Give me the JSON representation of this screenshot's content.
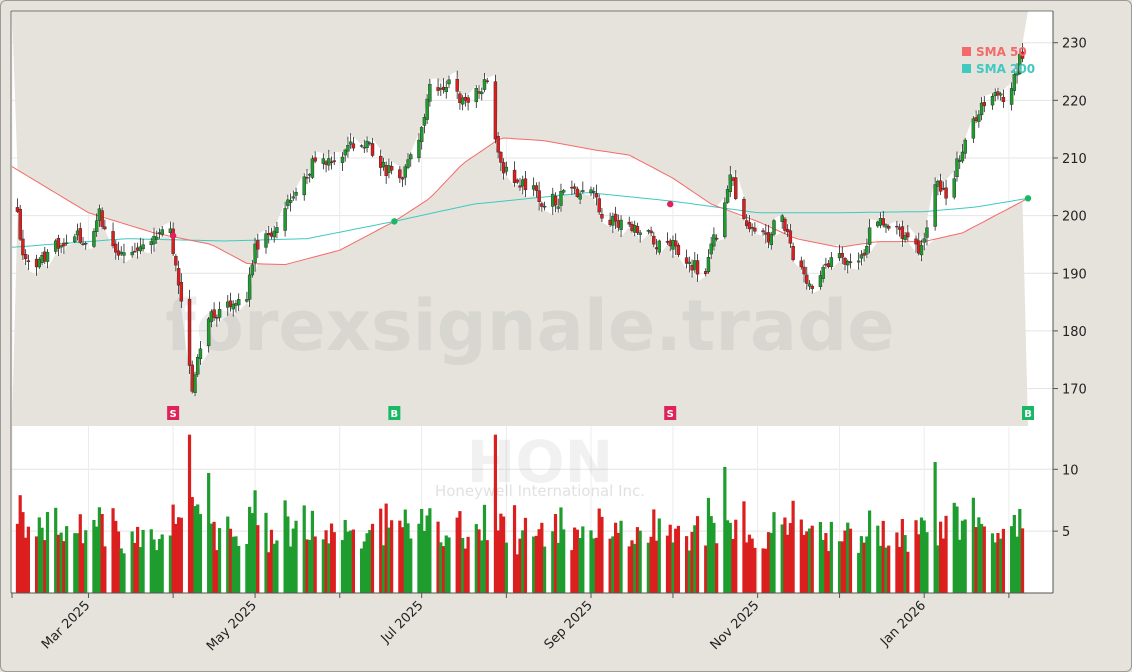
{
  "watermark": "forexsignale.trade",
  "ticker": "HON",
  "company": "Honeywell International Inc.",
  "legend": [
    {
      "label": "SMA 50",
      "color": "#f46a6a"
    },
    {
      "label": "SMA 200",
      "color": "#3fc9c0"
    }
  ],
  "colors": {
    "up": "#1e9d2e",
    "down": "#db1e1e",
    "sma50": "#f46a6a",
    "sma200": "#3fc9c0",
    "buy": "#19b865",
    "sell": "#e0225a"
  },
  "chart_data": {
    "type": "candlestick",
    "price_axis": {
      "ticks": [
        170,
        180,
        190,
        200,
        210,
        220,
        230
      ],
      "range": [
        163.5,
        235.5
      ]
    },
    "volume_axis": {
      "ticks": [
        5,
        10
      ],
      "range": [
        0,
        13.5
      ]
    },
    "x_axis": {
      "ticks": [
        "Mar 2025",
        "May 2025",
        "Jul 2025",
        "Sep 2025",
        "Nov 2025",
        "Jan 2026"
      ]
    },
    "price_anchors": [
      [
        "2025-02-01",
        205
      ],
      [
        "2025-02-05",
        194
      ],
      [
        "2025-02-10",
        191
      ],
      [
        "2025-02-14",
        193
      ],
      [
        "2025-02-20",
        196
      ],
      [
        "2025-02-25",
        197
      ],
      [
        "2025-03-01",
        194
      ],
      [
        "2025-03-05",
        200
      ],
      [
        "2025-03-10",
        194
      ],
      [
        "2025-03-15",
        193
      ],
      [
        "2025-03-20",
        194
      ],
      [
        "2025-03-25",
        196
      ],
      [
        "2025-03-31",
        197
      ],
      [
        "2025-04-04",
        186
      ],
      [
        "2025-04-08",
        169
      ],
      [
        "2025-04-12",
        180
      ],
      [
        "2025-04-16",
        183
      ],
      [
        "2025-04-22",
        185
      ],
      [
        "2025-04-28",
        186
      ],
      [
        "2025-05-01",
        194
      ],
      [
        "2025-05-06",
        196
      ],
      [
        "2025-05-12",
        202
      ],
      [
        "2025-05-18",
        206
      ],
      [
        "2025-05-24",
        210
      ],
      [
        "2025-05-31",
        210
      ],
      [
        "2025-06-06",
        212
      ],
      [
        "2025-06-12",
        212
      ],
      [
        "2025-06-18",
        208
      ],
      [
        "2025-06-24",
        207
      ],
      [
        "2025-06-30",
        212
      ],
      [
        "2025-07-04",
        222
      ],
      [
        "2025-07-10",
        223
      ],
      [
        "2025-07-16",
        220
      ],
      [
        "2025-07-22",
        222
      ],
      [
        "2025-07-25",
        223
      ],
      [
        "2025-07-29",
        210
      ],
      [
        "2025-08-04",
        206
      ],
      [
        "2025-08-10",
        205
      ],
      [
        "2025-08-15",
        202
      ],
      [
        "2025-08-21",
        203
      ],
      [
        "2025-08-27",
        204
      ],
      [
        "2025-08-31",
        207
      ],
      [
        "2025-09-05",
        200
      ],
      [
        "2025-09-12",
        199
      ],
      [
        "2025-09-19",
        198
      ],
      [
        "2025-09-25",
        195
      ],
      [
        "2025-10-01",
        196
      ],
      [
        "2025-10-07",
        191
      ],
      [
        "2025-10-13",
        191
      ],
      [
        "2025-10-17",
        197
      ],
      [
        "2025-10-22",
        206
      ],
      [
        "2025-10-28",
        199
      ],
      [
        "2025-11-04",
        196
      ],
      [
        "2025-11-10",
        200
      ],
      [
        "2025-11-14",
        193
      ],
      [
        "2025-11-20",
        188
      ],
      [
        "2025-11-26",
        191
      ],
      [
        "2025-12-02",
        193
      ],
      [
        "2025-12-08",
        191
      ],
      [
        "2025-12-13",
        198
      ],
      [
        "2025-12-19",
        199
      ],
      [
        "2025-12-24",
        197
      ],
      [
        "2025-12-31",
        194
      ],
      [
        "2026-01-05",
        205
      ],
      [
        "2026-01-10",
        204
      ],
      [
        "2026-01-15",
        212
      ],
      [
        "2026-01-20",
        217
      ],
      [
        "2026-01-26",
        222
      ],
      [
        "2026-01-31",
        220
      ],
      [
        "2026-02-04",
        226
      ],
      [
        "2026-02-08",
        229
      ]
    ],
    "sma50_anchors": [
      [
        "2025-02-01",
        208.5
      ],
      [
        "2025-03-01",
        200.5
      ],
      [
        "2025-03-25",
        197
      ],
      [
        "2025-04-15",
        195
      ],
      [
        "2025-04-28",
        191.7
      ],
      [
        "2025-05-12",
        191.5
      ],
      [
        "2025-06-01",
        194
      ],
      [
        "2025-06-21",
        199
      ],
      [
        "2025-07-04",
        203
      ],
      [
        "2025-07-16",
        209
      ],
      [
        "2025-07-30",
        213.5
      ],
      [
        "2025-08-15",
        213
      ],
      [
        "2025-09-01",
        211.5
      ],
      [
        "2025-09-15",
        210.5
      ],
      [
        "2025-10-01",
        206.5
      ],
      [
        "2025-10-15",
        202
      ],
      [
        "2025-11-01",
        199
      ],
      [
        "2025-11-15",
        196
      ],
      [
        "2025-12-01",
        194.5
      ],
      [
        "2025-12-15",
        195.5
      ],
      [
        "2026-01-01",
        195.5
      ],
      [
        "2026-01-15",
        197
      ],
      [
        "2026-02-08",
        203
      ]
    ],
    "sma200_anchors": [
      [
        "2025-02-01",
        194.5
      ],
      [
        "2025-03-15",
        196
      ],
      [
        "2025-04-20",
        195.6
      ],
      [
        "2025-05-20",
        196
      ],
      [
        "2025-06-21",
        199
      ],
      [
        "2025-07-20",
        202
      ],
      [
        "2025-08-31",
        204
      ],
      [
        "2025-10-01",
        202.5
      ],
      [
        "2025-11-01",
        200.5
      ],
      [
        "2025-12-01",
        200.5
      ],
      [
        "2026-01-01",
        200.7
      ],
      [
        "2026-01-20",
        201.5
      ],
      [
        "2026-02-08",
        203
      ]
    ],
    "signals": [
      {
        "date": "2025-04-01",
        "type": "S",
        "price": 196.5
      },
      {
        "date": "2025-06-21",
        "type": "B",
        "price": 199
      },
      {
        "date": "2025-09-30",
        "type": "S",
        "price": 202
      },
      {
        "date": "2026-02-08",
        "type": "B",
        "price": 203
      }
    ]
  }
}
